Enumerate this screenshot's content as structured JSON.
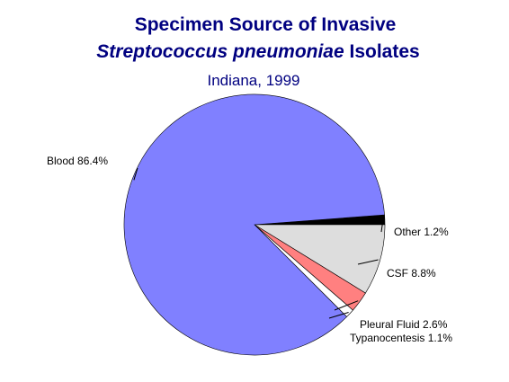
{
  "chart_data": {
    "type": "pie",
    "title_line1": "Specimen Source of Invasive",
    "title_line2_italic": "Streptococcus pneumoniae",
    "title_line2_rest": " Isolates",
    "subtitle": "Indiana, 1999",
    "slices": [
      {
        "name": "Blood",
        "value": 86.4,
        "label": "Blood  86.4%",
        "color": "#8080ff"
      },
      {
        "name": "Typanocentesis",
        "value": 1.1,
        "label": "Typanocentesis  1.1%",
        "color": "#ffffff"
      },
      {
        "name": "Pleural Fluid",
        "value": 2.6,
        "label": "Pleural Fluid  2.6%",
        "color": "#ff8080"
      },
      {
        "name": "CSF",
        "value": 8.8,
        "label": "CSF  8.8%",
        "color": "#dddddd"
      },
      {
        "name": "Other",
        "value": 1.2,
        "label": "Other  1.2%",
        "color": "#000000"
      }
    ]
  }
}
